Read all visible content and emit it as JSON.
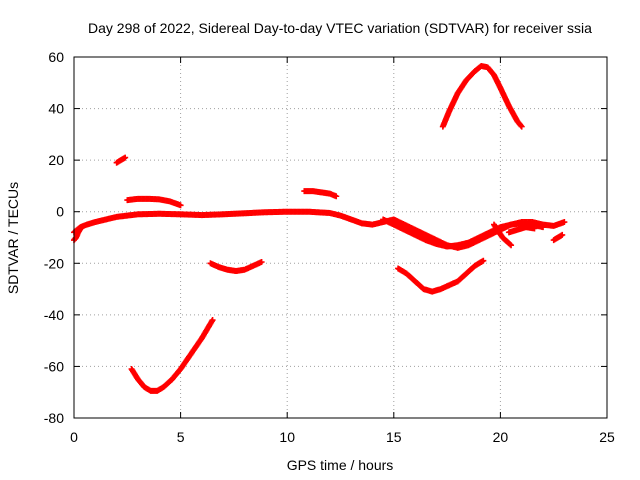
{
  "chart_data": {
    "type": "scatter",
    "title": "Day 298 of 2022, Sidereal Day-to-day VTEC variation (SDTVAR) for receiver ssia",
    "xlabel": "GPS time / hours",
    "ylabel": "SDTVAR / TECUs",
    "xlim": [
      0,
      25
    ],
    "ylim": [
      -80,
      60
    ],
    "xticks": [
      0,
      5,
      10,
      15,
      20,
      25
    ],
    "yticks": [
      -80,
      -60,
      -40,
      -20,
      0,
      20,
      40,
      60
    ],
    "grid": true,
    "marker_color": "#ff0000",
    "series": [
      {
        "name": "main-band",
        "x": [
          0.0,
          0.3,
          0.6,
          1.0,
          1.5,
          2.0,
          2.5,
          3.0,
          4.0,
          5.0,
          6.0,
          7.0,
          8.0,
          9.0,
          10.0,
          11.0,
          12.0,
          12.5,
          13.0,
          13.5,
          14.0,
          14.5,
          15.0,
          15.5,
          16.0,
          16.5,
          17.0,
          17.5,
          18.0,
          18.5,
          19.0,
          19.5,
          20.0,
          20.5,
          21.0,
          21.5,
          22.0,
          22.5,
          23.0
        ],
        "y": [
          -8,
          -6,
          -5,
          -4,
          -3,
          -2,
          -1.5,
          -1,
          -0.8,
          -1,
          -1.3,
          -1,
          -0.6,
          -0.2,
          0,
          0,
          -0.5,
          -1.5,
          -3,
          -4.5,
          -5,
          -4,
          -3,
          -5,
          -7,
          -9,
          -11,
          -13,
          -14,
          -13,
          -11,
          -9,
          -7,
          -5,
          -4,
          -4,
          -5,
          -5.5,
          -4
        ]
      },
      {
        "name": "lower-band",
        "x": [
          14.5,
          15.0,
          15.5,
          16.0,
          16.5,
          17.0,
          17.5,
          18.0,
          18.5,
          19.0,
          19.5,
          20.0,
          20.5,
          21.0,
          21.5,
          22.0
        ],
        "y": [
          -3,
          -5,
          -7,
          -9,
          -11,
          -12.5,
          -13.5,
          -13,
          -12,
          -10,
          -8,
          -6,
          -5,
          -4.5,
          -5,
          -6
        ]
      },
      {
        "name": "dip-20",
        "x": [
          19.7,
          20.1,
          20.5
        ],
        "y": [
          -5,
          -10,
          -13
        ]
      },
      {
        "name": "segment-21",
        "x": [
          20.4,
          20.8,
          21.2,
          21.6
        ],
        "y": [
          -8,
          -7,
          -6,
          -6.5
        ]
      },
      {
        "name": "tail-22",
        "x": [
          22.5,
          22.7,
          22.9
        ],
        "y": [
          -11,
          -10,
          -9
        ]
      },
      {
        "name": "start-arc",
        "x": [
          0.0,
          0.1,
          0.2,
          0.35
        ],
        "y": [
          -11,
          -10,
          -8,
          -6
        ]
      },
      {
        "name": "short-20",
        "x": [
          2.0,
          2.2,
          2.4
        ],
        "y": [
          19,
          20,
          21
        ]
      },
      {
        "name": "bump-5",
        "x": [
          2.5,
          3.0,
          3.5,
          4.0,
          4.5,
          5.0
        ],
        "y": [
          4.5,
          5,
          5,
          4.8,
          4,
          2.5
        ]
      },
      {
        "name": "bump-8",
        "x": [
          10.8,
          11.2,
          11.6,
          12.0,
          12.3
        ],
        "y": [
          8,
          8,
          7.5,
          7,
          6
        ]
      },
      {
        "name": "arc-minus20",
        "x": [
          6.4,
          6.8,
          7.2,
          7.6,
          8.0,
          8.4,
          8.8
        ],
        "y": [
          -20,
          -21.5,
          -22.5,
          -23,
          -22.5,
          -21,
          -19.5
        ]
      },
      {
        "name": "arc-minus60",
        "x": [
          2.7,
          3.0,
          3.3,
          3.6,
          3.9,
          4.2,
          4.6,
          5.0,
          5.5,
          6.0,
          6.5
        ],
        "y": [
          -61,
          -65,
          -68,
          -69.5,
          -69.5,
          -68,
          -65,
          -61,
          -55,
          -49,
          -42
        ]
      },
      {
        "name": "arc-minus30",
        "x": [
          15.2,
          15.6,
          16.0,
          16.4,
          16.8,
          17.2,
          17.6,
          18.0,
          18.4,
          18.8,
          19.2
        ],
        "y": [
          -22,
          -24,
          -27,
          -30,
          -31,
          -30,
          -28.5,
          -27,
          -24,
          -21,
          -19
        ]
      },
      {
        "name": "arc-plus40",
        "x": [
          17.3,
          17.6,
          18.0,
          18.4,
          18.8,
          19.1,
          19.4,
          19.7,
          20.0,
          20.4,
          20.8,
          21.0
        ],
        "y": [
          33,
          39,
          46,
          51,
          54.5,
          56.5,
          56,
          53,
          48,
          41,
          35,
          33
        ]
      }
    ]
  }
}
